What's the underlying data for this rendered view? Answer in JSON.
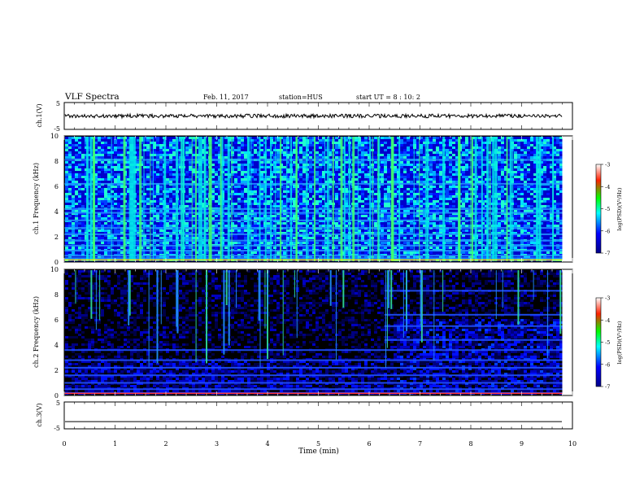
{
  "header": {
    "title": "VLF Spectra",
    "date": "Feb. 11, 2017",
    "station": "station=HUS",
    "start": "start UT =  8 : 10: 2"
  },
  "chart_data": [
    {
      "type": "line",
      "panel": "ch1-waveform",
      "ylabel": "ch.1(V)",
      "ylim": [
        -5,
        5
      ],
      "yticks": [
        "5",
        "-5"
      ],
      "signal": {
        "mean": 0,
        "noise_amplitude": 0.7,
        "end_min": 9.8
      }
    },
    {
      "type": "heatmap",
      "panel": "ch1-spectrogram",
      "ylabel": "ch.1\nFrequency (kHz)",
      "ylim": [
        0,
        10
      ],
      "yticks": [
        "0",
        "2",
        "4",
        "6",
        "8",
        "10"
      ],
      "colorbar": {
        "label": "log(PSD)(V²/Hz)",
        "range": [
          -7,
          -3
        ],
        "ticks": [
          "-3",
          "-4",
          "-5",
          "-6",
          "-7"
        ]
      },
      "lines_khz": [
        0.3,
        0.5,
        0.9,
        1.3,
        1.7,
        2.2,
        2.7,
        3.3,
        3.9,
        4.2,
        6.2,
        8.1
      ],
      "data_end_min": 9.8
    },
    {
      "type": "heatmap",
      "panel": "ch2-spectrogram",
      "ylabel": "ch.2\nFrequency (kHz)",
      "ylim": [
        0,
        10
      ],
      "yticks": [
        "0",
        "2",
        "4",
        "6",
        "8",
        "10"
      ],
      "colorbar": {
        "label": "log(PSD)(V²/Hz)",
        "range": [
          -7,
          -3
        ],
        "ticks": [
          "-3",
          "-4",
          "-5",
          "-6",
          "-7"
        ]
      },
      "lines_khz": [
        0.2,
        0.5,
        1.0,
        1.6,
        2.2,
        2.8,
        3.6,
        4.4,
        5.5,
        6.4,
        8.3
      ],
      "data_end_min": 9.8
    },
    {
      "type": "line",
      "panel": "ch3-waveform",
      "ylabel": "ch.3(V)",
      "ylim": [
        -5,
        5
      ],
      "yticks": [
        "5",
        "-5"
      ],
      "signal": {
        "mean": -2.3,
        "noise_amplitude": 0,
        "end_min": 9.8
      }
    }
  ],
  "xaxis": {
    "label": "Time (min)",
    "range": [
      0,
      10
    ],
    "ticks": [
      "0",
      "1",
      "2",
      "3",
      "4",
      "5",
      "6",
      "7",
      "8",
      "9",
      "10"
    ]
  }
}
